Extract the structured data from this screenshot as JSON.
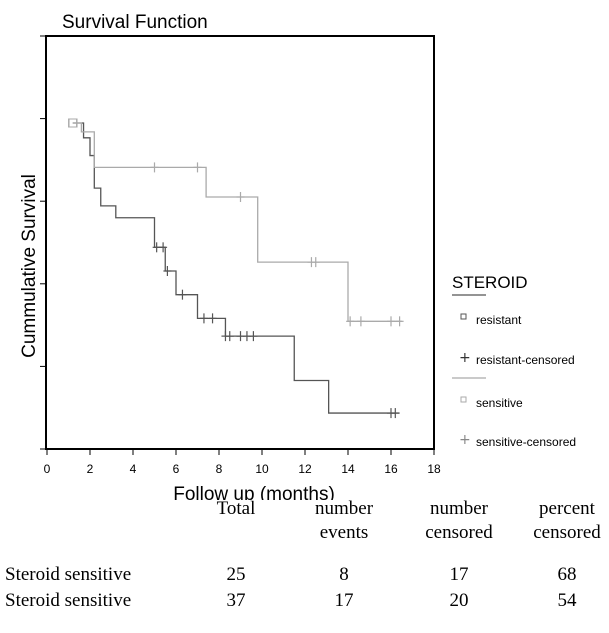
{
  "chart_data": {
    "type": "line",
    "title": "Survival Function",
    "xlabel": "Follow up (months)",
    "ylabel": "Cummulative Survival",
    "xlim": [
      0,
      18
    ],
    "ylim": [
      0,
      1
    ],
    "x_ticks": [
      "0",
      "2",
      "4",
      "6",
      "8",
      "10",
      "12",
      "14",
      "16",
      "18"
    ],
    "y_tick_count": 6,
    "legend": {
      "title": "STEROID",
      "placement": "right",
      "entries": [
        "resistant",
        "resistant-censored",
        "sensitive",
        "sensitive-censored"
      ]
    },
    "series": [
      {
        "name": "resistant",
        "color": "#555555",
        "steps": [
          [
            1.2,
            1.0
          ],
          [
            1.7,
            0.975
          ],
          [
            2.0,
            0.945
          ],
          [
            2.2,
            0.89
          ],
          [
            2.5,
            0.86
          ],
          [
            3.2,
            0.84
          ],
          [
            5.0,
            0.79
          ],
          [
            5.5,
            0.75
          ],
          [
            6.0,
            0.71
          ],
          [
            7.0,
            0.67
          ],
          [
            8.3,
            0.64
          ],
          [
            11.5,
            0.565
          ],
          [
            13.1,
            0.51
          ],
          [
            16.4,
            0.51
          ]
        ],
        "censored": [
          5.1,
          5.4,
          5.6,
          6.3,
          7.3,
          7.7,
          8.3,
          8.5,
          9.0,
          9.3,
          9.6,
          16.0,
          16.2
        ]
      },
      {
        "name": "sensitive",
        "color": "#aaaaaa",
        "steps": [
          [
            1.2,
            1.0
          ],
          [
            1.6,
            0.985
          ],
          [
            2.2,
            0.925
          ],
          [
            7.4,
            0.875
          ],
          [
            9.8,
            0.765
          ],
          [
            14.0,
            0.665
          ],
          [
            16.5,
            0.665
          ]
        ],
        "censored": [
          5.0,
          7.0,
          9.0,
          12.3,
          12.5,
          14.1,
          14.6,
          16.0,
          16.4
        ]
      }
    ]
  },
  "table": {
    "headers": [
      {
        "line1": "Total",
        "line2": ""
      },
      {
        "line1": "number",
        "line2": "events"
      },
      {
        "line1": "number",
        "line2": "censored"
      },
      {
        "line1": "percent",
        "line2": "censored"
      }
    ],
    "rows": [
      {
        "label": "Steroid sensitive",
        "values": [
          "25",
          "8",
          "17",
          "68"
        ]
      },
      {
        "label": "Steroid sensitive",
        "values": [
          "37",
          "17",
          "20",
          "54"
        ]
      }
    ]
  }
}
